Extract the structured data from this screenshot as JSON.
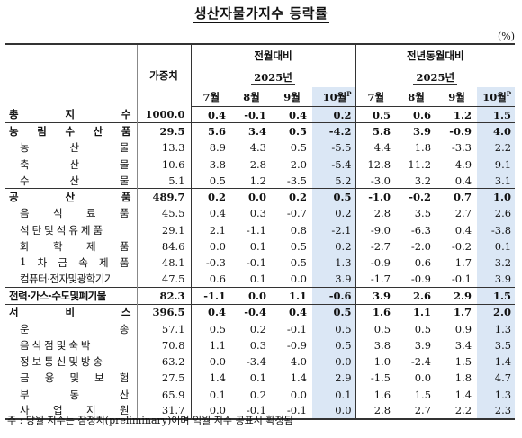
{
  "title": "생산자물가지수 등락률",
  "unit": "(%)",
  "headers": {
    "weight": "가중치",
    "mom": "전월대비",
    "yoy": "전년동월대비",
    "year": "2025년",
    "months": [
      "7월",
      "8월",
      "9월",
      "10월"
    ],
    "prelim_mark": "P"
  },
  "rows": [
    {
      "label": "총 지 수",
      "weight": "1000.0",
      "mom": [
        "0.4",
        "-0.1",
        "0.4",
        "0.2"
      ],
      "yoy": [
        "0.5",
        "0.6",
        "1.2",
        "1.5"
      ],
      "level": 0
    },
    {
      "label": "농 림 수 산 품",
      "weight": "29.5",
      "mom": [
        "5.6",
        "3.4",
        "0.5",
        "-4.2"
      ],
      "yoy": [
        "5.8",
        "3.9",
        "-0.9",
        "4.0"
      ],
      "level": 0
    },
    {
      "label": "농 산 물",
      "weight": "13.3",
      "mom": [
        "8.9",
        "4.3",
        "0.5",
        "-5.5"
      ],
      "yoy": [
        "4.4",
        "1.8",
        "-3.3",
        "2.2"
      ],
      "level": 1
    },
    {
      "label": "축 산 물",
      "weight": "10.6",
      "mom": [
        "3.8",
        "2.8",
        "2.0",
        "-5.4"
      ],
      "yoy": [
        "12.8",
        "11.2",
        "4.9",
        "9.1"
      ],
      "level": 1
    },
    {
      "label": "수 산 물",
      "weight": "5.1",
      "mom": [
        "0.5",
        "1.2",
        "-3.5",
        "5.2"
      ],
      "yoy": [
        "-3.0",
        "3.2",
        "0.4",
        "3.1"
      ],
      "level": 1
    },
    {
      "label": "공 산 품",
      "weight": "489.7",
      "mom": [
        "0.2",
        "0.0",
        "0.2",
        "0.5"
      ],
      "yoy": [
        "-1.0",
        "-0.2",
        "0.7",
        "1.0"
      ],
      "level": 0
    },
    {
      "label": "음 식 료 품",
      "weight": "45.5",
      "mom": [
        "0.4",
        "0.3",
        "-0.7",
        "0.2"
      ],
      "yoy": [
        "2.8",
        "3.5",
        "2.7",
        "2.6"
      ],
      "level": 1
    },
    {
      "label": "석탄및석유제품",
      "weight": "29.1",
      "mom": [
        "2.1",
        "-1.1",
        "0.8",
        "-2.1"
      ],
      "yoy": [
        "-9.0",
        "-6.3",
        "0.4",
        "-3.8"
      ],
      "level": 1
    },
    {
      "label": "화 학 제 품",
      "weight": "84.6",
      "mom": [
        "0.0",
        "0.1",
        "0.5",
        "0.2"
      ],
      "yoy": [
        "-2.7",
        "-2.0",
        "-0.2",
        "0.1"
      ],
      "level": 1
    },
    {
      "label": "1 차 금 속 제 품",
      "weight": "48.1",
      "mom": [
        "-0.3",
        "-0.1",
        "0.5",
        "1.3"
      ],
      "yoy": [
        "-0.9",
        "0.6",
        "1.7",
        "3.2"
      ],
      "level": 1
    },
    {
      "label": "컴퓨터·전자및광학기기",
      "weight": "47.5",
      "mom": [
        "0.6",
        "0.1",
        "0.0",
        "3.9"
      ],
      "yoy": [
        "-1.7",
        "-0.9",
        "-0.1",
        "3.9"
      ],
      "level": 1
    },
    {
      "label": "전력·가스·수도및폐기물",
      "weight": "82.3",
      "mom": [
        "-1.1",
        "0.0",
        "1.1",
        "-0.6"
      ],
      "yoy": [
        "3.9",
        "2.6",
        "2.9",
        "1.5"
      ],
      "level": 0
    },
    {
      "label": "서 비 스",
      "weight": "396.5",
      "mom": [
        "0.4",
        "-0.4",
        "0.4",
        "0.5"
      ],
      "yoy": [
        "1.6",
        "1.1",
        "1.7",
        "2.0"
      ],
      "level": 0
    },
    {
      "label": "운 송",
      "weight": "57.1",
      "mom": [
        "0.5",
        "0.2",
        "-0.1",
        "0.5"
      ],
      "yoy": [
        "0.5",
        "0.5",
        "0.9",
        "1.3"
      ],
      "level": 1
    },
    {
      "label": "음식점및숙박",
      "weight": "70.8",
      "mom": [
        "1.1",
        "0.3",
        "-0.9",
        "0.5"
      ],
      "yoy": [
        "3.8",
        "3.9",
        "3.4",
        "3.5"
      ],
      "level": 1
    },
    {
      "label": "정보통신및방송",
      "weight": "63.2",
      "mom": [
        "0.0",
        "-3.4",
        "4.0",
        "0.0"
      ],
      "yoy": [
        "1.0",
        "-2.4",
        "1.5",
        "1.4"
      ],
      "level": 1
    },
    {
      "label": "금 융 및 보 험",
      "weight": "27.5",
      "mom": [
        "1.4",
        "0.1",
        "1.4",
        "2.9"
      ],
      "yoy": [
        "-1.5",
        "0.0",
        "1.8",
        "4.7"
      ],
      "level": 1
    },
    {
      "label": "부 동 산",
      "weight": "65.9",
      "mom": [
        "0.1",
        "0.2",
        "0.0",
        "0.1"
      ],
      "yoy": [
        "1.6",
        "1.5",
        "1.4",
        "1.3"
      ],
      "level": 1
    },
    {
      "label": "사 업 지 원",
      "weight": "31.7",
      "mom": [
        "0.0",
        "-0.1",
        "-0.1",
        "0.0"
      ],
      "yoy": [
        "2.8",
        "2.7",
        "2.2",
        "2.3"
      ],
      "level": 1
    }
  ],
  "note": "주 : 당월 지수는 잠정치(preliminary)이며 익월 지수 공표시 확정됨",
  "colors": {
    "highlight": "#dbe7f5"
  }
}
